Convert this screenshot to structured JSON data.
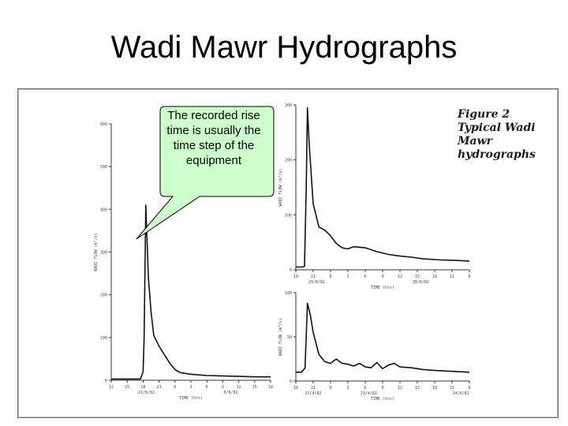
{
  "title": "Wadi Mawr Hydrographs",
  "callout": {
    "text": "The recorded rise time is usually the time step of the equipment"
  },
  "figure_caption": [
    "Figure 2",
    "Typical Wadi",
    "Mawr",
    "hydrographs"
  ],
  "colors": {
    "callout_fill": "#ccffcc",
    "callout_border": "#000000",
    "trace": "#111111"
  },
  "chart_data": [
    {
      "type": "line",
      "title": "",
      "xlabel": "TIME (hrs)",
      "ylabel": "WADI FLOW (m³/s)",
      "xticks": [
        "12",
        "15",
        "18",
        "21",
        "0",
        "3",
        "6",
        "9",
        "12",
        "15",
        "18"
      ],
      "yticks": [
        0,
        100,
        200,
        300,
        400,
        500,
        600
      ],
      "xlim": [
        0,
        30
      ],
      "ylim": [
        0,
        600
      ],
      "date_labels": [
        "21/8/82",
        "9/8/82"
      ],
      "series": [
        {
          "x": [
            0,
            2.0,
            4.0,
            5.5,
            6.0,
            6.2,
            6.5,
            7.0,
            7.5,
            8.0,
            9.0,
            10.0,
            11.0,
            12.0,
            13.0,
            15.0,
            18.0,
            21.0,
            24.0,
            27.0,
            30.0
          ],
          "y": [
            3,
            3,
            3,
            3,
            20,
            100,
            410,
            240,
            160,
            105,
            80,
            60,
            40,
            25,
            18,
            14,
            11,
            10,
            9,
            8,
            8
          ]
        }
      ]
    },
    {
      "type": "line",
      "title": "",
      "xlabel": "TIME (hrs)",
      "ylabel": "WADI FLOW (m³/s)",
      "xticks": [
        "18",
        "21",
        "0",
        "3",
        "6",
        "9",
        "12",
        "15",
        "18",
        "21",
        "0"
      ],
      "yticks": [
        0,
        100,
        200,
        300
      ],
      "xlim": [
        0,
        30
      ],
      "ylim": [
        0,
        300
      ],
      "date_labels": [
        "29/8/82",
        "30/8/82"
      ],
      "series": [
        {
          "x": [
            0,
            1.0,
            1.5,
            1.8,
            2.0,
            2.3,
            3.0,
            4.0,
            5.0,
            6.0,
            7.0,
            8.0,
            9.0,
            10.0,
            12.0,
            14.0,
            16.0,
            18.0,
            20.0,
            22.0,
            25.0,
            28.0,
            30.0
          ],
          "y": [
            5,
            5,
            6,
            150,
            295,
            230,
            120,
            78,
            72,
            62,
            48,
            40,
            38,
            42,
            40,
            33,
            28,
            25,
            23,
            20,
            18,
            17,
            16
          ]
        }
      ]
    },
    {
      "type": "line",
      "title": "",
      "xlabel": "TIME (hrs)",
      "ylabel": "WADI FLOW (m³/s)",
      "xticks": [
        "18",
        "21",
        "0",
        "3",
        "6",
        "9",
        "12",
        "15",
        "18",
        "21",
        "0"
      ],
      "yticks": [
        0,
        50,
        100
      ],
      "xlim": [
        0,
        30
      ],
      "ylim": [
        0,
        100
      ],
      "date_labels": [
        "22/4/82",
        "23/4/82",
        "24/4/82"
      ],
      "series": [
        {
          "x": [
            0,
            1.0,
            1.6,
            2.0,
            2.5,
            3.0,
            4.0,
            5.0,
            6.0,
            7.0,
            8.0,
            9.0,
            10.0,
            11.0,
            12.0,
            13.0,
            14.0,
            15.0,
            16.0,
            17.0,
            18.0,
            20.0,
            22.0,
            24.0,
            27.0,
            30.0
          ],
          "y": [
            10,
            10,
            15,
            88,
            75,
            55,
            30,
            22,
            20,
            25,
            20,
            19,
            17,
            20,
            16,
            15,
            21,
            14,
            18,
            20,
            16,
            15,
            13,
            12,
            11,
            10
          ]
        }
      ]
    }
  ]
}
